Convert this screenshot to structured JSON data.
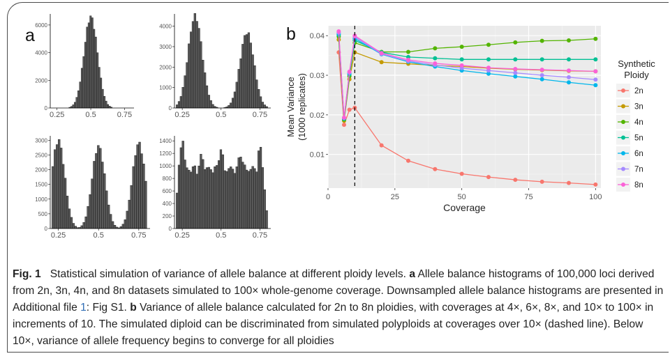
{
  "panel_a_label": "a",
  "panel_b_label": "b",
  "caption": {
    "fig_label": "Fig. 1",
    "title": "Statistical simulation of variance of allele balance at different ploidy levels.",
    "a_label": "a",
    "a_text_1": "Allele balance histograms of 100,000 loci derived from 2n, 3n, 4n, and 8n datasets simulated to 100× whole-genome coverage. Downsampled allele balance histograms are presented in Additional file ",
    "a_link": "1",
    "a_text_2": ": Fig S1.",
    "b_label": "b",
    "b_text": "Variance of allele balance calculated for 2n to 8n ploidies, with coverages at 4×, 6×, 8×, and 10× to 100× in increments of 10. The simulated diploid can be discriminated from simulated polyploids at coverages over 10× (dashed line). Below 10×, variance of allele frequency begins to converge for all ploidies"
  },
  "chart_data": [
    {
      "type": "bar",
      "panel": "a",
      "ploidy": "2n",
      "x_ticks": [
        0.25,
        0.5,
        0.75
      ],
      "x_tick_labels": [
        "0.25",
        "0.5",
        "0.75"
      ],
      "xlim": [
        0.2,
        0.82
      ],
      "y_ticks": [
        0,
        2000,
        4000,
        6000
      ],
      "y_tick_labels": [
        "0",
        "2000",
        "4000",
        "6000"
      ],
      "ylim": [
        0,
        6800
      ],
      "peaks": [
        {
          "center": 0.5,
          "height": 6600,
          "sd": 0.05
        }
      ]
    },
    {
      "type": "bar",
      "panel": "a",
      "ploidy": "3n",
      "x_ticks": [
        0.25,
        0.5,
        0.75
      ],
      "x_tick_labels": [
        "0.25",
        "0.5",
        "0.75"
      ],
      "xlim": [
        0.2,
        0.82
      ],
      "y_ticks": [
        0,
        1000,
        2000,
        3000,
        4000
      ],
      "y_tick_labels": [
        "0",
        "1000",
        "2000",
        "3000",
        "4000"
      ],
      "ylim": [
        0,
        4600
      ],
      "peaks": [
        {
          "center": 0.333,
          "height": 4500,
          "sd": 0.045
        },
        {
          "center": 0.667,
          "height": 3700,
          "sd": 0.045
        }
      ]
    },
    {
      "type": "bar",
      "panel": "a",
      "ploidy": "4n",
      "x_ticks": [
        0.25,
        0.5,
        0.75
      ],
      "x_tick_labels": [
        "0.25",
        "0.5",
        "0.75"
      ],
      "xlim": [
        0.2,
        0.82
      ],
      "y_ticks": [
        0,
        500,
        1000,
        1500,
        2000,
        2500,
        3000
      ],
      "y_tick_labels": [
        "0",
        "500",
        "1000",
        "1500",
        "2000",
        "2500",
        "3000"
      ],
      "ylim": [
        0,
        3150
      ],
      "peaks": [
        {
          "center": 0.25,
          "height": 3000,
          "sd": 0.04
        },
        {
          "center": 0.5,
          "height": 2800,
          "sd": 0.04
        },
        {
          "center": 0.75,
          "height": 2900,
          "sd": 0.04
        }
      ]
    },
    {
      "type": "bar",
      "panel": "a",
      "ploidy": "8n",
      "x_ticks": [
        0.25,
        0.5,
        0.75
      ],
      "x_tick_labels": [
        "0.25",
        "0.5",
        "0.75"
      ],
      "xlim": [
        0.2,
        0.82
      ],
      "y_ticks": [
        0,
        200,
        400,
        600,
        800,
        1000,
        1200,
        1400
      ],
      "y_tick_labels": [
        "0",
        "200",
        "400",
        "600",
        "800",
        "1000",
        "1200",
        "1400"
      ],
      "ylim": [
        0,
        1480
      ],
      "peaks": [
        {
          "center": 0.25,
          "height": 1400,
          "sd": 0.025
        },
        {
          "center": 0.375,
          "height": 1180,
          "sd": 0.03
        },
        {
          "center": 0.5,
          "height": 1250,
          "sd": 0.03
        },
        {
          "center": 0.625,
          "height": 1180,
          "sd": 0.03
        },
        {
          "center": 0.75,
          "height": 1300,
          "sd": 0.025
        }
      ],
      "baseline": 950
    },
    {
      "type": "line",
      "panel": "b",
      "xlabel": "Coverage",
      "ylabel_line1": "Mean Variance",
      "ylabel_line2": "(1000 replicates)",
      "xlim": [
        0,
        102
      ],
      "ylim": [
        0.0015,
        0.0425
      ],
      "x_ticks": [
        0,
        25,
        50,
        75,
        100
      ],
      "x_tick_labels": [
        "0",
        "25",
        "50",
        "75",
        "100"
      ],
      "y_ticks": [
        0.01,
        0.02,
        0.03,
        0.04
      ],
      "y_tick_labels": [
        "0.01",
        "0.02",
        "0.03",
        "0.04"
      ],
      "grid": true,
      "dashed_vline": 10,
      "legend_title_line1": "Synthetic",
      "legend_title_line2": "Ploidy",
      "legend_position": "right",
      "x": [
        4,
        6,
        8,
        10,
        20,
        30,
        40,
        50,
        60,
        70,
        80,
        90,
        100
      ],
      "series": [
        {
          "name": "2n",
          "color": "#f8766d",
          "values": [
            0.0358,
            0.0175,
            0.0213,
            0.0218,
            0.0123,
            0.0084,
            0.0063,
            0.0051,
            0.0043,
            0.0036,
            0.0031,
            0.0028,
            0.0024
          ]
        },
        {
          "name": "3n",
          "color": "#c49a00",
          "values": [
            0.039,
            0.0185,
            0.029,
            0.0358,
            0.0333,
            0.0329,
            0.0325,
            0.0322,
            0.0318,
            0.0315,
            0.0313,
            0.0311,
            0.031
          ]
        },
        {
          "name": "4n",
          "color": "#53b400",
          "values": [
            0.0398,
            0.0188,
            0.0298,
            0.0382,
            0.0359,
            0.0359,
            0.0368,
            0.0372,
            0.0377,
            0.0383,
            0.0387,
            0.0388,
            0.0392
          ]
        },
        {
          "name": "5n",
          "color": "#00c094",
          "values": [
            0.0402,
            0.019,
            0.0302,
            0.0388,
            0.0358,
            0.0346,
            0.0343,
            0.034,
            0.034,
            0.034,
            0.034,
            0.034,
            0.034
          ]
        },
        {
          "name": "6n",
          "color": "#00b6eb",
          "values": [
            0.0405,
            0.0191,
            0.0305,
            0.0393,
            0.0353,
            0.0334,
            0.0322,
            0.0312,
            0.0304,
            0.0297,
            0.029,
            0.0282,
            0.0275
          ]
        },
        {
          "name": "7n",
          "color": "#a58aff",
          "values": [
            0.0408,
            0.0192,
            0.0307,
            0.0397,
            0.0354,
            0.0336,
            0.0326,
            0.0318,
            0.0312,
            0.0306,
            0.03,
            0.0295,
            0.0289
          ]
        },
        {
          "name": "8n",
          "color": "#fb61d7",
          "values": [
            0.0411,
            0.0193,
            0.0309,
            0.04,
            0.0356,
            0.0339,
            0.033,
            0.0325,
            0.0319,
            0.0316,
            0.0314,
            0.0312,
            0.031
          ]
        }
      ]
    }
  ]
}
